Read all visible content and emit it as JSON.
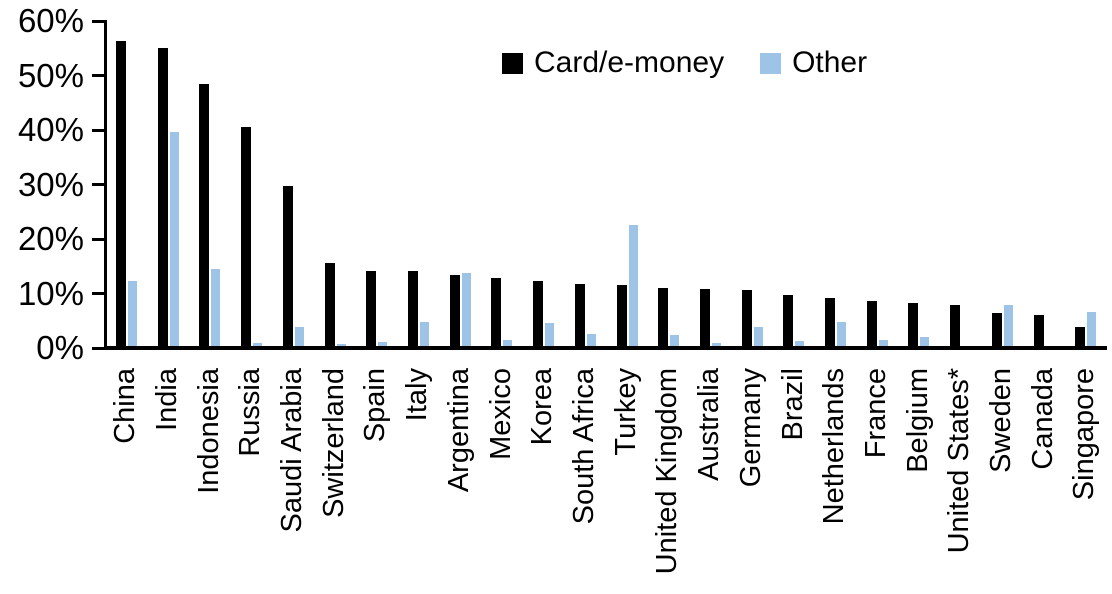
{
  "chart_data": {
    "type": "bar",
    "title": "",
    "xlabel": "",
    "ylabel": "",
    "unit": "%",
    "ylim": [
      0,
      60
    ],
    "ytick_labels": [
      "0%",
      "10%",
      "20%",
      "30%",
      "40%",
      "50%",
      "60%"
    ],
    "grid": false,
    "legend_position": "top-center",
    "categories": [
      "China",
      "India",
      "Indonesia",
      "Russia",
      "Saudi Arabia",
      "Switzerland",
      "Spain",
      "Italy",
      "Argentina",
      "Mexico",
      "Korea",
      "South Africa",
      "Turkey",
      "United Kingdom",
      "Australia",
      "Germany",
      "Brazil",
      "Netherlands",
      "France",
      "Belgium",
      "United States*",
      "Sweden",
      "Canada",
      "Singapore"
    ],
    "series": [
      {
        "name": "Card/e-money",
        "color": "#000000",
        "values": [
          56.3,
          55.0,
          48.4,
          40.5,
          29.8,
          15.6,
          14.2,
          14.1,
          13.4,
          12.9,
          12.3,
          11.8,
          11.6,
          11.0,
          10.8,
          10.6,
          9.8,
          9.2,
          8.6,
          8.2,
          7.9,
          6.5,
          6.0,
          3.9
        ]
      },
      {
        "name": "Other",
        "color": "#9DC3E6",
        "values": [
          12.3,
          39.7,
          14.5,
          1.0,
          3.9,
          0.8,
          1.1,
          4.7,
          13.8,
          1.4,
          4.6,
          2.5,
          22.5,
          2.3,
          1.0,
          3.9,
          1.2,
          4.8,
          1.5,
          2.0,
          0.3,
          7.9,
          0.0,
          6.6
        ]
      }
    ]
  },
  "colors": {
    "card": "#000000",
    "other": "#9DC3E6",
    "axis": "#000000",
    "background": "#FFFFFF"
  }
}
